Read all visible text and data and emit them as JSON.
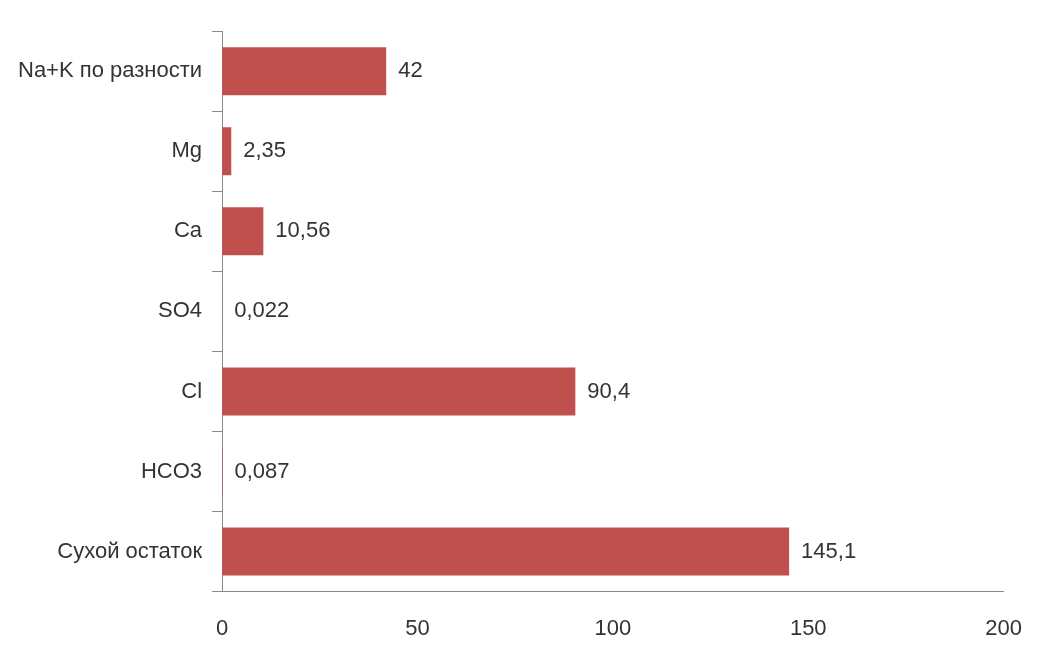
{
  "chart_data": {
    "type": "bar",
    "orientation": "horizontal",
    "categories": [
      "Na+K по разности",
      "Mg",
      "Ca",
      "SO4",
      "Cl",
      "HCO3",
      "Сухой остаток"
    ],
    "values": [
      42,
      2.35,
      10.56,
      0.022,
      90.4,
      0.087,
      145.1
    ],
    "value_labels": [
      "42",
      "2,35",
      "10,56",
      "0,022",
      "90,4",
      "0,087",
      "145,1"
    ],
    "color": "#c0504d",
    "xlim": [
      0,
      200
    ],
    "xticks": [
      0,
      50,
      100,
      150,
      200
    ],
    "grid": false,
    "legend": false
  }
}
